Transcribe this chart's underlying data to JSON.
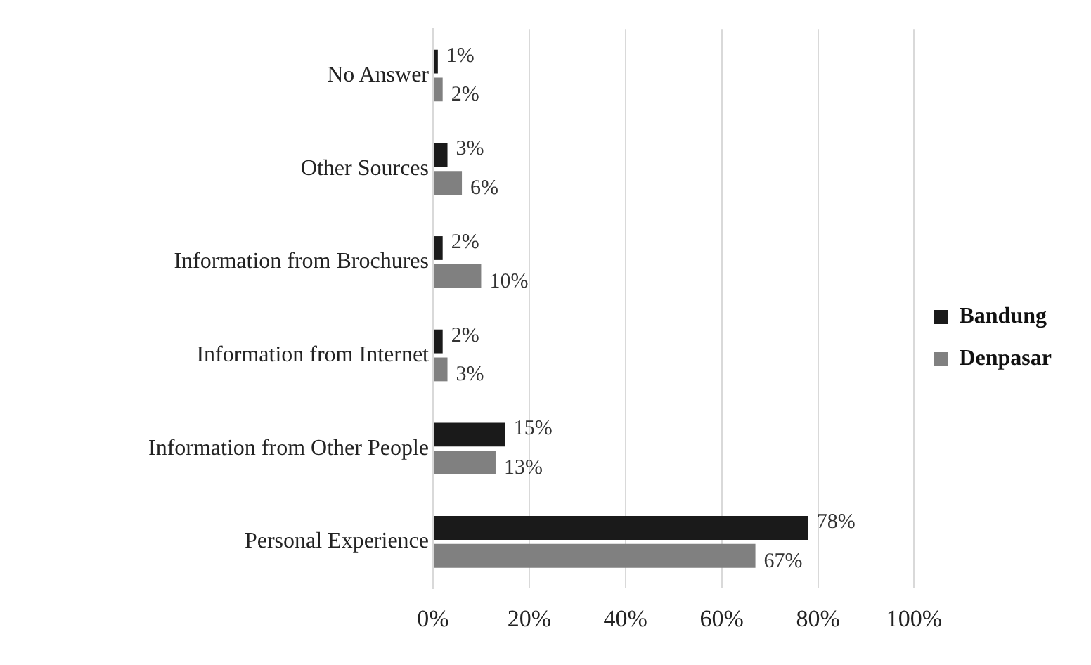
{
  "chart_data": {
    "type": "bar",
    "orientation": "horizontal",
    "categories": [
      "No Answer",
      "Other Sources",
      "Information from Brochures",
      "Information from Internet",
      "Information from Other People",
      "Personal Experience"
    ],
    "series": [
      {
        "name": "Bandung",
        "color": "#1a1a1a",
        "values": [
          1,
          3,
          2,
          2,
          15,
          78
        ],
        "value_labels": [
          "1%",
          "3%",
          "2%",
          "2%",
          "15%",
          "78%"
        ]
      },
      {
        "name": "Denpasar",
        "color": "#808080",
        "values": [
          2,
          6,
          10,
          3,
          13,
          67
        ],
        "value_labels": [
          "2%",
          "6%",
          "10%",
          "3%",
          "13%",
          "67%"
        ]
      }
    ],
    "xlim": [
      0,
      100
    ],
    "xticks": [
      {
        "value": 0,
        "label": "0%"
      },
      {
        "value": 20,
        "label": "20%"
      },
      {
        "value": 40,
        "label": "40%"
      },
      {
        "value": 60,
        "label": "60%"
      },
      {
        "value": 80,
        "label": "80%"
      },
      {
        "value": 100,
        "label": "100%"
      }
    ],
    "grid": "x",
    "legend": "right"
  }
}
